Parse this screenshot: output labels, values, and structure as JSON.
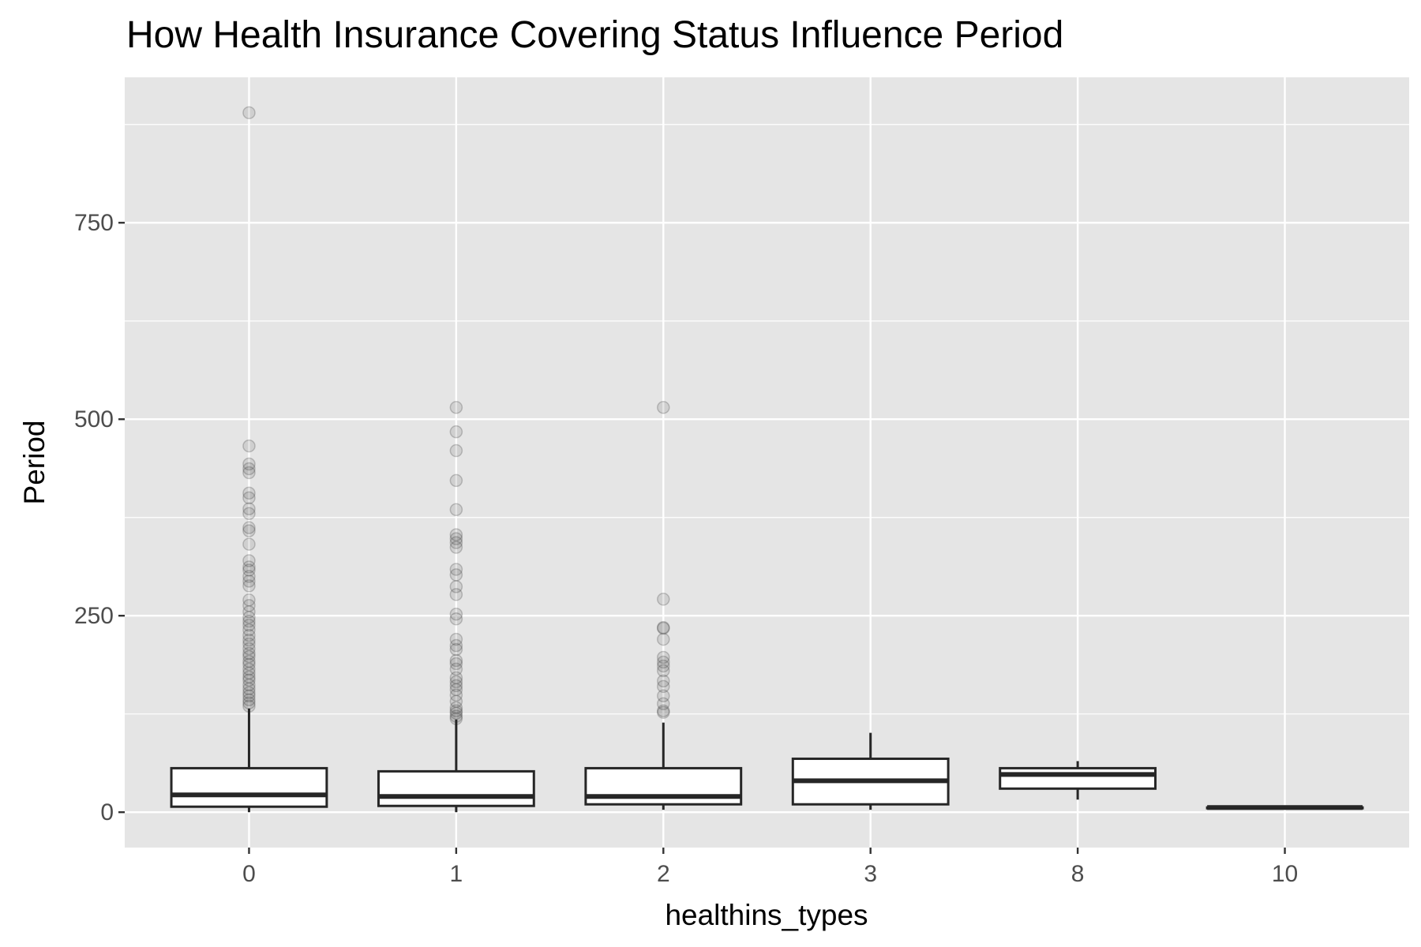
{
  "chart_data": {
    "type": "boxplot",
    "title": "How Health Insurance Covering Status Influence Period",
    "xlabel": "healthins_types",
    "ylabel": "Period",
    "categories": [
      "0",
      "1",
      "2",
      "3",
      "8",
      "10"
    ],
    "y_ticks": [
      0,
      250,
      500,
      750
    ],
    "y_tick_labels": [
      "0",
      "250",
      "500",
      "750"
    ],
    "ylim": [
      -45,
      935
    ],
    "grid": true,
    "colors": {
      "panel": "#e5e5e5",
      "grid": "#ffffff",
      "box_fill": "#ffffff",
      "box_line": "#262626",
      "outlier": "#333333",
      "tick_label": "#4d4d4d"
    },
    "boxes": [
      {
        "category": "0",
        "min": 0,
        "q1": 7,
        "median": 22,
        "q3": 56,
        "max": 132,
        "outliers": [
          890,
          466,
          443,
          437,
          432,
          406,
          400,
          386,
          380,
          362,
          358,
          341,
          320,
          312,
          308,
          300,
          294,
          288,
          270,
          263,
          255,
          248,
          243,
          238,
          232,
          225,
          219,
          214,
          208,
          202,
          198,
          192,
          188,
          182,
          177,
          172,
          168,
          162,
          157,
          152,
          148,
          143,
          139,
          135
        ]
      },
      {
        "category": "1",
        "min": 0,
        "q1": 8,
        "median": 20,
        "q3": 52,
        "max": 118,
        "outliers": [
          515,
          484,
          460,
          422,
          385,
          353,
          348,
          343,
          337,
          309,
          302,
          287,
          277,
          252,
          246,
          220,
          212,
          207,
          193,
          189,
          182,
          171,
          166,
          161,
          156,
          149,
          141,
          133,
          129,
          126,
          122,
          119
        ]
      },
      {
        "category": "2",
        "min": 3,
        "q1": 10,
        "median": 20,
        "q3": 56,
        "max": 114,
        "outliers": [
          515,
          271,
          235,
          234,
          220,
          197,
          191,
          186,
          180,
          167,
          160,
          148,
          138,
          129,
          127
        ]
      },
      {
        "category": "3",
        "min": 3,
        "q1": 10,
        "median": 40,
        "q3": 68,
        "max": 101,
        "outliers": []
      },
      {
        "category": "8",
        "min": 16,
        "q1": 30,
        "median": 48,
        "q3": 56,
        "max": 65,
        "outliers": []
      },
      {
        "category": "10",
        "min": 6,
        "q1": 6,
        "median": 6,
        "q3": 6,
        "max": 6,
        "outliers": []
      }
    ]
  }
}
